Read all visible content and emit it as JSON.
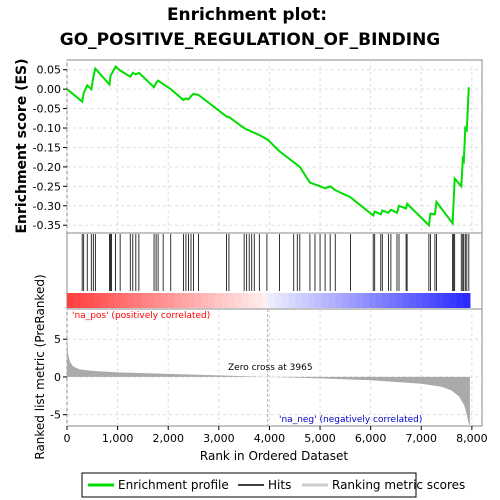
{
  "chart_data": {
    "type": "line",
    "title": "Enrichment plot:",
    "subtitle": "GO_POSITIVE_REGULATION_OF_BINDING",
    "top_panel": {
      "ylabel": "Enrichment score (ES)",
      "ylim": [
        -0.37,
        0.075
      ],
      "yticks": [
        0.05,
        0.0,
        -0.05,
        -0.1,
        -0.15,
        -0.2,
        -0.25,
        -0.3,
        -0.35
      ],
      "ytick_labels": [
        "0.05",
        "0.00",
        "-0.05",
        "-0.10",
        "-0.15",
        "-0.20",
        "-0.25",
        "-0.30",
        "-0.35"
      ],
      "grid": true,
      "series": [
        {
          "name": "Enrichment profile",
          "color": "#00dd00",
          "x": [
            0,
            300,
            330,
            400,
            480,
            520,
            560,
            840,
            860,
            960,
            1050,
            1250,
            1300,
            1360,
            1420,
            1720,
            1760,
            1800,
            1900,
            2050,
            2300,
            2350,
            2400,
            2450,
            2500,
            2600,
            3150,
            3200,
            3500,
            3550,
            3600,
            3650,
            3700,
            3800,
            3965,
            4200,
            4600,
            4800,
            4900,
            5000,
            5100,
            5200,
            5300,
            5600,
            6050,
            6080,
            6200,
            6230,
            6350,
            6400,
            6520,
            6560,
            6700,
            6720,
            7150,
            7180,
            7270,
            7300,
            7620,
            7640,
            7660,
            7790,
            7820,
            7840,
            7870,
            7900,
            7940
          ],
          "y": [
            0.0,
            -0.032,
            -0.01,
            0.01,
            0.0,
            0.03,
            0.053,
            0.012,
            0.034,
            0.058,
            0.048,
            0.032,
            0.042,
            0.038,
            0.042,
            0.005,
            0.016,
            0.022,
            0.013,
            0.0,
            -0.028,
            -0.024,
            -0.026,
            -0.018,
            -0.012,
            -0.015,
            -0.07,
            -0.072,
            -0.1,
            -0.104,
            -0.106,
            -0.11,
            -0.112,
            -0.118,
            -0.13,
            -0.16,
            -0.2,
            -0.24,
            -0.245,
            -0.25,
            -0.255,
            -0.25,
            -0.26,
            -0.278,
            -0.325,
            -0.315,
            -0.322,
            -0.312,
            -0.318,
            -0.31,
            -0.318,
            -0.3,
            -0.307,
            -0.295,
            -0.35,
            -0.32,
            -0.322,
            -0.29,
            -0.345,
            -0.285,
            -0.23,
            -0.25,
            -0.18,
            -0.185,
            -0.1,
            -0.105,
            0.005
          ]
        }
      ]
    },
    "hits": [
      300,
      330,
      400,
      480,
      520,
      560,
      840,
      860,
      880,
      960,
      1050,
      1250,
      1300,
      1360,
      1420,
      1720,
      1760,
      1800,
      1900,
      2050,
      2300,
      2350,
      2400,
      2450,
      2500,
      2600,
      3150,
      3200,
      3500,
      3550,
      3600,
      3650,
      3700,
      3800,
      3950,
      4200,
      4480,
      4550,
      4600,
      4800,
      4900,
      5000,
      5100,
      5200,
      5300,
      5600,
      6050,
      6080,
      6200,
      6230,
      6350,
      6400,
      6520,
      6560,
      6700,
      6720,
      7150,
      7180,
      7270,
      7300,
      7620,
      7640,
      7660,
      7790,
      7820,
      7840,
      7870,
      7900,
      7940
    ],
    "bottom_panel": {
      "ylabel": "Ranked list metric (PreRanked)",
      "xlabel": "Rank in Ordered Dataset",
      "ylim": [
        -6.5,
        9
      ],
      "yticks": [
        5,
        0,
        -5
      ],
      "ytick_labels": [
        "5",
        "0",
        "-5"
      ],
      "xlim": [
        0,
        8200
      ],
      "xticks": [
        0,
        1000,
        2000,
        3000,
        4000,
        5000,
        6000,
        7000,
        8000
      ],
      "xtick_labels": [
        "0",
        "1,000",
        "2,000",
        "3,000",
        "4,000",
        "5,000",
        "6,000",
        "7,000",
        "8,000"
      ],
      "metric_x": [
        0,
        20,
        60,
        120,
        250,
        500,
        1000,
        2000,
        3000,
        3965,
        5000,
        6000,
        7000,
        7400,
        7600,
        7750,
        7850,
        7900,
        7930,
        7960
      ],
      "metric_y": [
        6.0,
        3.0,
        2.0,
        1.4,
        1.0,
        0.8,
        0.6,
        0.4,
        0.2,
        0.0,
        -0.2,
        -0.45,
        -0.9,
        -1.3,
        -1.8,
        -2.6,
        -3.8,
        -5.0,
        -6.0,
        -6.5
      ]
    },
    "annotations": {
      "pos_label": "'na_pos' (positively correlated)",
      "neg_label": "'na_neg' (negatively correlated)",
      "zero_cross": "Zero cross at 3965",
      "zero_cross_x": 3965
    },
    "legend": {
      "placement": "bottom",
      "items": [
        {
          "label": "Enrichment profile",
          "color": "#00dd00"
        },
        {
          "label": "Hits",
          "color": "#000000"
        },
        {
          "label": "Ranking metric scores",
          "color": "#bbbbbb"
        }
      ]
    },
    "colors": {
      "positive_label": "#ff0000",
      "negative_label": "#0000cc",
      "profile": "#00dd00",
      "metric_fill": "#aaaaaa"
    }
  }
}
